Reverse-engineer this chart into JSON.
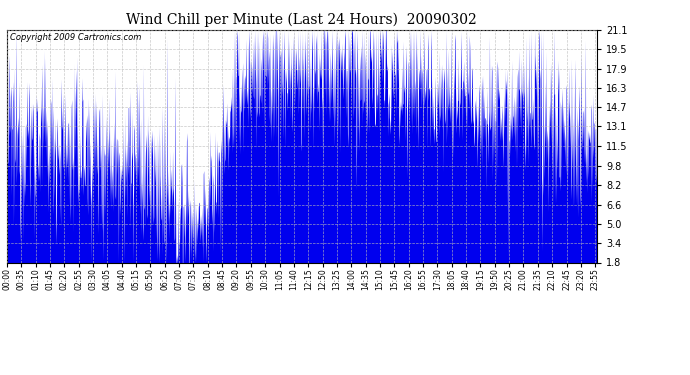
{
  "title": "Wind Chill per Minute (Last 24 Hours)  20090302",
  "copyright_text": "Copyright 2009 Cartronics.com",
  "bar_color": "#0000ee",
  "background_color": "#ffffff",
  "plot_bg_color": "#ffffff",
  "grid_color": "#bbbbbb",
  "yticks": [
    1.8,
    3.4,
    5.0,
    6.6,
    8.2,
    9.8,
    11.5,
    13.1,
    14.7,
    16.3,
    17.9,
    19.5,
    21.1
  ],
  "ymin": 1.8,
  "ymax": 21.1,
  "title_fontsize": 10,
  "copyright_fontsize": 6,
  "ytick_fontsize": 7,
  "xtick_fontsize": 5.5
}
